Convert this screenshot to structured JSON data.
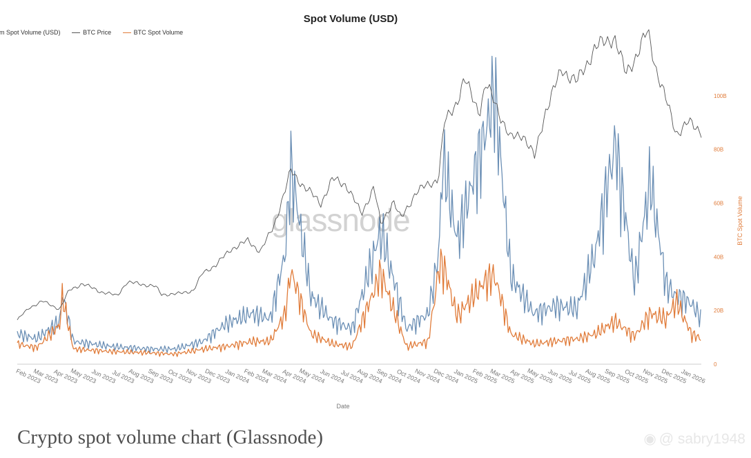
{
  "chart_data": {
    "type": "line",
    "title": "Spot Volume (USD)",
    "xlabel": "Date",
    "ylabel_right": "BTC Spot Volume",
    "legend": [
      "um Spot Volume (USD)",
      "BTC Price",
      "BTC Spot Volume"
    ],
    "legend_position": "top-left",
    "x_ticks": [
      "Feb 2023",
      "Mar 2023",
      "Apr 2023",
      "May 2023",
      "Jun 2023",
      "Jul 2023",
      "Aug 2023",
      "Sep 2023",
      "Oct 2023",
      "Nov 2023",
      "Dec 2023",
      "Jan 2024",
      "Feb 2024",
      "Mar 2024",
      "Apr 2024",
      "May 2024",
      "Jun 2024",
      "Jul 2024",
      "Aug 2024",
      "Sep 2024",
      "Oct 2024",
      "Nov 2024",
      "Dec 2024",
      "Jan 2025",
      "Feb 2025",
      "Mar 2025",
      "Apr 2025",
      "May 2025",
      "Jun 2025",
      "Jul 2025",
      "Aug 2025",
      "Sep 2025",
      "Oct 2025",
      "Nov 2025",
      "Dec 2025",
      "Jan 2026"
    ],
    "right_axis_ticks": [
      "0",
      "20B",
      "40B",
      "60B",
      "80B",
      "100B"
    ],
    "right_ylim": [
      0,
      110
    ],
    "x_range": [
      "2023-01-01",
      "2025-12-31"
    ],
    "grid": false,
    "colors": {
      "btc_price": "#555555",
      "btc_spot_volume": "#e07b39",
      "eth_spot_volume": "#6b8fb5"
    },
    "series": [
      {
        "name": "BTC Price",
        "color": "#555555",
        "x": [
          "2023-01-01",
          "2023-01-20",
          "2023-02-10",
          "2023-03-10",
          "2023-03-25",
          "2023-04-15",
          "2023-05-15",
          "2023-06-10",
          "2023-06-25",
          "2023-07-15",
          "2023-08-10",
          "2023-08-20",
          "2023-09-15",
          "2023-10-10",
          "2023-10-25",
          "2023-11-15",
          "2023-12-10",
          "2024-01-05",
          "2024-01-25",
          "2024-02-15",
          "2024-03-05",
          "2024-03-14",
          "2024-04-05",
          "2024-05-01",
          "2024-05-20",
          "2024-06-10",
          "2024-07-05",
          "2024-07-25",
          "2024-08-05",
          "2024-08-25",
          "2024-09-06",
          "2024-09-30",
          "2024-10-20",
          "2024-11-05",
          "2024-11-15",
          "2024-12-05",
          "2024-12-17",
          "2025-01-10",
          "2025-01-20",
          "2025-02-05",
          "2025-02-28",
          "2025-03-20",
          "2025-04-08",
          "2025-04-25",
          "2025-05-22",
          "2025-06-15",
          "2025-07-14",
          "2025-08-14",
          "2025-09-01",
          "2025-09-20",
          "2025-10-06",
          "2025-10-20",
          "2025-11-21",
          "2025-12-10",
          "2025-12-31"
        ],
        "y": [
          16.5,
          21,
          23.5,
          20.5,
          27.5,
          30,
          27,
          25.5,
          30.5,
          30,
          29,
          26,
          26.2,
          27.5,
          34,
          37,
          43,
          46,
          42,
          51,
          65,
          72,
          66,
          60,
          69,
          67,
          56,
          66,
          52,
          61,
          54,
          64,
          67,
          69,
          90,
          98,
          106,
          94,
          104,
          97,
          84,
          86,
          77,
          94,
          110,
          105,
          118,
          122,
          108,
          116,
          124,
          110,
          86,
          90,
          87
        ]
      },
      {
        "name": "BTC Spot Volume",
        "color": "#e07b39",
        "x": [
          "2023-01-01",
          "2023-02-01",
          "2023-03-10",
          "2023-03-14",
          "2023-04-01",
          "2023-06-01",
          "2023-08-01",
          "2023-09-10",
          "2023-10-25",
          "2023-12-01",
          "2024-01-11",
          "2024-02-10",
          "2024-03-05",
          "2024-03-14",
          "2024-04-15",
          "2024-05-20",
          "2024-06-20",
          "2024-08-05",
          "2024-09-15",
          "2024-10-20",
          "2024-11-06",
          "2024-11-12",
          "2024-12-05",
          "2025-01-20",
          "2025-02-03",
          "2025-03-01",
          "2025-04-07",
          "2025-05-10",
          "2025-06-15",
          "2025-07-15",
          "2025-08-15",
          "2025-09-15",
          "2025-10-10",
          "2025-11-05",
          "2025-11-21",
          "2025-12-15",
          "2025-12-31"
        ],
        "y": [
          8,
          6.5,
          15.5,
          27,
          6,
          5,
          4.5,
          4,
          6,
          7,
          9,
          9,
          20,
          37,
          12,
          8,
          7,
          36,
          7,
          9,
          38,
          40,
          19,
          33,
          35,
          12,
          8,
          9,
          10,
          12,
          17,
          11,
          20,
          18,
          25,
          12,
          10
        ]
      },
      {
        "name": "ETH Spot Volume",
        "color": "#6b8fb5",
        "x": [
          "2023-01-01",
          "2023-02-01",
          "2023-03-10",
          "2023-03-14",
          "2023-04-01",
          "2023-06-01",
          "2023-08-01",
          "2023-09-10",
          "2023-10-25",
          "2023-12-01",
          "2024-01-11",
          "2024-02-10",
          "2024-03-05",
          "2024-03-14",
          "2024-04-15",
          "2024-05-20",
          "2024-06-20",
          "2024-08-05",
          "2024-09-15",
          "2024-10-20",
          "2024-11-06",
          "2024-11-12",
          "2024-12-05",
          "2025-01-20",
          "2025-02-03",
          "2025-03-01",
          "2025-04-07",
          "2025-05-10",
          "2025-06-15",
          "2025-07-15",
          "2025-08-15",
          "2025-09-15",
          "2025-10-10",
          "2025-11-05",
          "2025-11-21",
          "2025-12-15",
          "2025-12-31"
        ],
        "y": [
          12,
          10,
          17,
          28,
          9,
          7,
          6,
          6,
          9,
          16,
          20,
          18,
          44,
          78,
          27,
          17,
          14,
          53,
          14,
          20,
          44,
          82,
          49,
          92,
          108,
          35,
          20,
          23,
          22,
          45,
          88,
          32,
          73,
          31,
          27,
          24,
          18
        ]
      }
    ]
  },
  "watermark": "glassnode",
  "caption": "Crypto spot volume chart (Glassnode)",
  "credit": "@ sabry1948",
  "credit_icon": "weibo-icon"
}
